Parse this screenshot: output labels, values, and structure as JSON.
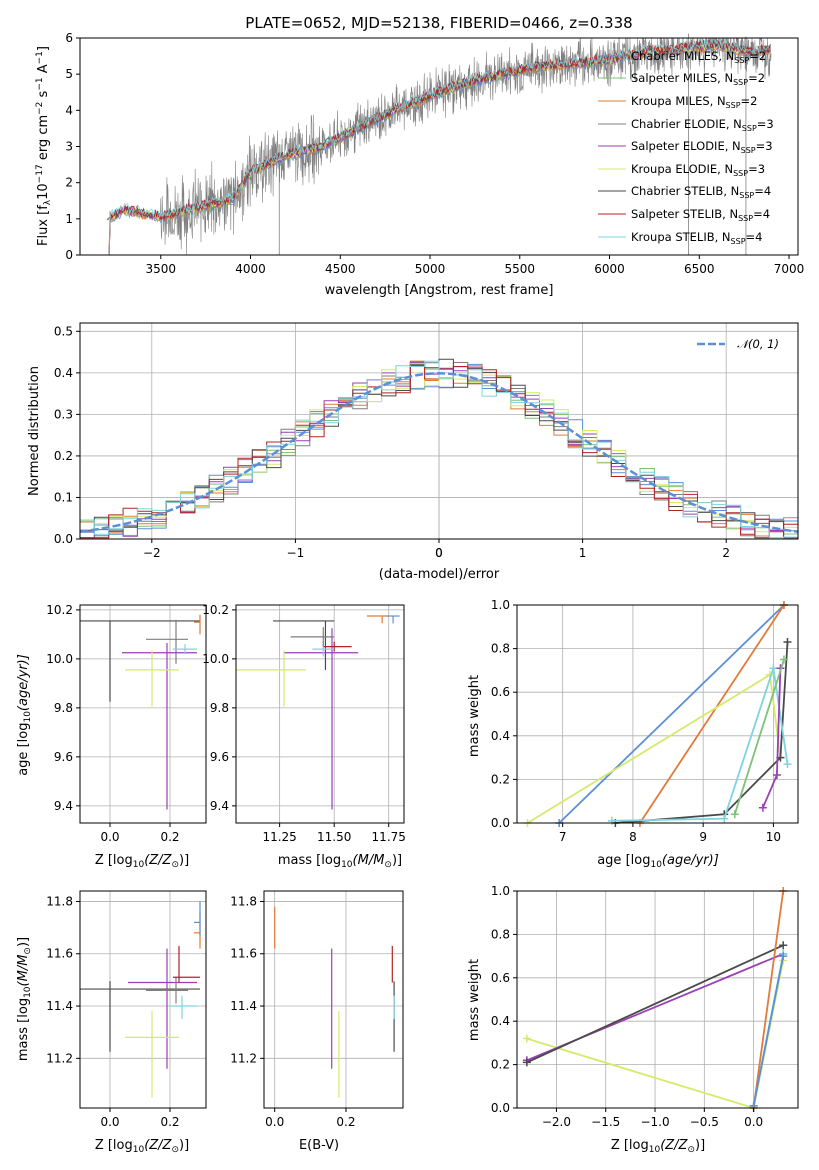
{
  "figure": {
    "title": "PLATE=0652, MJD=52138, FIBERID=0466, z=0.338"
  },
  "series_colors": {
    "Chabrier MILES": "#5b8fd6",
    "Salpeter MILES": "#7fc07a",
    "Kroupa MILES": "#e07b3a",
    "Chabrier ELODIE": "#7f7f7f",
    "Salpeter ELODIE": "#9a3fb6",
    "Kroupa ELODIE": "#d4ea6b",
    "Chabrier STELIB": "#4a4a4a",
    "Salpeter STELIB": "#b22424",
    "Kroupa STELIB": "#7ed3e0"
  },
  "legend_labels": {
    "l1": "Chabrier MILES, N",
    "l2": "Salpeter MILES, N",
    "l3": "Kroupa MILES, N",
    "l4": "Chabrier ELODIE, N",
    "l5": "Salpeter ELODIE, N",
    "l6": "Kroupa ELODIE, N",
    "l7": "Chabrier STELIB, N",
    "l8": "Salpeter STELIB, N",
    "l9": "Kroupa STELIB, N",
    "sub": "SSP",
    "n2": "=2",
    "n3": "=3",
    "n4": "=4",
    "normal": "𝒩(0, 1)"
  },
  "axis_labels": {
    "spec_x": "wavelength [Angstrom, rest frame]",
    "spec_y_pre": "Flux [f",
    "spec_y_lam": "λ",
    "spec_y_exp": "−17",
    "spec_y_mid": " erg cm",
    "spec_y_m2": "−2",
    "spec_y_s": " s",
    "spec_y_m1a": "−1",
    "spec_y_A": " A",
    "spec_y_m1b": "−1",
    "spec_y_end": "]",
    "hist_x": "(data-model)/error",
    "hist_y": "Normed distribution",
    "age_y_pre": "age  [log",
    "age_y_sub": "10",
    "age_y_post": "(age/yr)]",
    "z_x_pre": "Z [log",
    "z_x_sub": "10",
    "z_x_post": "(Z/Z",
    "z_x_sun": "⊙",
    "z_x_end": ")]",
    "mass_x_pre": "mass [log",
    "mass_x_sub": "10",
    "mass_x_post": "(M/M",
    "mass_x_sun": "⊙",
    "mass_x_end": ")]",
    "mw_y": "mass weight",
    "age_x_pre": "age  [log",
    "age_x_sub": "10",
    "age_x_post": "(age/yr)]",
    "ebv_x": "E(B-V)"
  },
  "chart_data": [
    {
      "type": "line",
      "panel": "spectrum",
      "title": "PLATE=0652, MJD=52138, FIBERID=0466, z=0.338",
      "xlabel": "wavelength [Angstrom, rest frame]",
      "ylabel": "Flux [fλ 10^-17 erg cm^-2 s^-1 A^-1]",
      "xlim": [
        3050,
        7050
      ],
      "ylim": [
        0,
        6
      ],
      "xticks": [
        3500,
        4000,
        4500,
        5000,
        5500,
        6000,
        6500,
        7000
      ],
      "yticks": [
        0,
        1,
        2,
        3,
        4,
        5,
        6
      ],
      "legend": "upper right",
      "data_range": [
        3200,
        6900
      ],
      "model_anchor_points": {
        "x": [
          3200,
          3300,
          3500,
          3700,
          3900,
          4000,
          4200,
          4400,
          4600,
          4800,
          5000,
          5200,
          5400,
          5600,
          5800,
          6000,
          6200,
          6400,
          6600,
          6800,
          6900
        ],
        "y": [
          1.0,
          1.25,
          1.05,
          1.3,
          1.55,
          2.3,
          2.75,
          3.0,
          3.5,
          4.0,
          4.4,
          4.75,
          5.0,
          5.2,
          5.3,
          5.4,
          5.6,
          5.7,
          5.8,
          5.6,
          5.7
        ]
      },
      "series": [
        {
          "name": "Chabrier MILES, N_SSP=2",
          "color": "#5b8fd6"
        },
        {
          "name": "Salpeter MILES, N_SSP=2",
          "color": "#7fc07a"
        },
        {
          "name": "Kroupa MILES, N_SSP=2",
          "color": "#e07b3a"
        },
        {
          "name": "Chabrier ELODIE, N_SSP=3",
          "color": "#7f7f7f"
        },
        {
          "name": "Salpeter ELODIE, N_SSP=3",
          "color": "#9a3fb6"
        },
        {
          "name": "Kroupa ELODIE, N_SSP=3",
          "color": "#d4ea6b"
        },
        {
          "name": "Chabrier STELIB, N_SSP=4",
          "color": "#4a4a4a"
        },
        {
          "name": "Salpeter STELIB, N_SSP=4",
          "color": "#b22424"
        },
        {
          "name": "Kroupa STELIB, N_SSP=4",
          "color": "#7ed3e0"
        }
      ]
    },
    {
      "type": "area",
      "panel": "residual-histogram",
      "xlabel": "(data-model)/error",
      "ylabel": "Normed distribution",
      "xlim": [
        -2.5,
        2.5
      ],
      "ylim": [
        0,
        0.52
      ],
      "xticks": [
        -2,
        -1,
        0,
        1,
        2
      ],
      "yticks": [
        0.0,
        0.1,
        0.2,
        0.3,
        0.4,
        0.5
      ],
      "grid": true,
      "legend": "upper right",
      "bin_width": 0.1,
      "reference": {
        "name": "𝒩(0, 1)",
        "mean": 0,
        "sigma": 1,
        "color": "#5b8fd6",
        "style": "dashed"
      }
    },
    {
      "type": "scatter",
      "panel": "age-vs-Z",
      "xlabel": "Z [log10(Z/Z⊙)]",
      "ylabel": "age [log10(age/yr)]",
      "xlim": [
        -0.1,
        0.32
      ],
      "ylim": [
        9.33,
        10.22
      ],
      "xticks": [
        0.0,
        0.2
      ],
      "yticks": [
        9.4,
        9.6,
        9.8,
        10.0,
        10.2
      ],
      "grid": true,
      "points": [
        {
          "series": "Chabrier STELIB",
          "x": 0.0,
          "y": 10.155,
          "x_err": [
            0.1,
            0.3
          ],
          "y_err": [
            0.33,
            0.0
          ]
        },
        {
          "series": "Chabrier ELODIE",
          "x": 0.22,
          "y": 10.08,
          "x_err": [
            0.1,
            0.04
          ],
          "y_err": [
            0.1,
            0.08
          ]
        },
        {
          "series": "Salpeter ELODIE",
          "x": 0.19,
          "y": 10.025,
          "x_err": [
            0.15,
            0.1
          ],
          "y_err": [
            0.64,
            0.04
          ]
        },
        {
          "series": "Kroupa ELODIE",
          "x": 0.14,
          "y": 9.955,
          "x_err": [
            0.09,
            0.09
          ],
          "y_err": [
            0.15,
            0.08
          ]
        },
        {
          "series": "Kroupa STELIB",
          "x": 0.25,
          "y": 10.04,
          "x_err": [
            0.04,
            0.04
          ],
          "y_err": [
            0.02,
            0.02
          ]
        },
        {
          "series": "Kroupa MILES",
          "x": 0.3,
          "y": 10.15,
          "x_err": [
            0.02,
            0.0
          ],
          "y_err": [
            0.05,
            0.03
          ]
        }
      ]
    },
    {
      "type": "scatter",
      "panel": "age-vs-mass",
      "xlabel": "mass [log10(M/M⊙)]",
      "ylabel": "",
      "xlim": [
        11.05,
        11.82
      ],
      "ylim": [
        9.33,
        10.22
      ],
      "xticks": [
        11.25,
        11.5,
        11.75
      ],
      "xtick_labels": [
        "11.25",
        "11.50",
        "11.75"
      ],
      "yticks": [
        9.4,
        9.6,
        9.8,
        10.0,
        10.2
      ],
      "grid": true,
      "points": [
        {
          "series": "Chabrier STELIB",
          "x": 11.46,
          "y": 10.155,
          "x_err": [
            0.24,
            0.04
          ],
          "y_err": [
            0.2,
            0.0
          ]
        },
        {
          "series": "Salpeter ELODIE",
          "x": 11.49,
          "y": 10.025,
          "x_err": [
            0.22,
            0.12
          ],
          "y_err": [
            0.64,
            0.1
          ]
        },
        {
          "series": "Kroupa ELODIE",
          "x": 11.27,
          "y": 9.955,
          "x_err": [
            0.22,
            0.1
          ],
          "y_err": [
            0.15,
            0.08
          ]
        },
        {
          "series": "Salpeter STELIB",
          "x": 11.5,
          "y": 10.05,
          "x_err": [
            0.05,
            0.08
          ],
          "y_err": [
            0.02,
            0.02
          ]
        },
        {
          "series": "Kroupa STELIB",
          "x": 11.45,
          "y": 10.04,
          "x_err": [
            0.05,
            0.05
          ],
          "y_err": [
            0.03,
            0.03
          ]
        },
        {
          "series": "Chabrier ELODIE",
          "x": 11.45,
          "y": 10.09,
          "x_err": [
            0.15,
            0.05
          ],
          "y_err": [
            0.04,
            0.04
          ]
        },
        {
          "series": "Kroupa MILES",
          "x": 11.72,
          "y": 10.175,
          "x_err": [
            0.07,
            0.03
          ],
          "y_err": [
            0.03,
            0.0
          ]
        },
        {
          "series": "Chabrier MILES",
          "x": 11.77,
          "y": 10.175,
          "x_err": [
            0.03,
            0.03
          ],
          "y_err": [
            0.03,
            0.0
          ]
        }
      ]
    },
    {
      "type": "line",
      "panel": "mass-weight-vs-age",
      "xlabel": "age [log10(age/yr)]",
      "ylabel": "mass weight",
      "xlim": [
        6.35,
        10.35
      ],
      "ylim": [
        0,
        1
      ],
      "xticks": [
        7,
        8,
        9,
        10
      ],
      "yticks": [
        0.0,
        0.2,
        0.4,
        0.6,
        0.8,
        1.0
      ],
      "grid": true,
      "series": [
        {
          "name": "Chabrier MILES",
          "x": [
            6.95,
            10.15
          ],
          "y": [
            0.0,
            1.0
          ]
        },
        {
          "name": "Kroupa MILES",
          "x": [
            8.1,
            10.15
          ],
          "y": [
            0.0,
            1.0
          ]
        },
        {
          "name": "Kroupa ELODIE",
          "x": [
            6.5,
            9.95,
            10.1
          ],
          "y": [
            0.0,
            0.68,
            0.3
          ]
        },
        {
          "name": "Chabrier STELIB",
          "x": [
            7.75,
            9.3,
            10.1,
            10.2
          ],
          "y": [
            0.0,
            0.04,
            0.3,
            0.83
          ]
        },
        {
          "name": "Kroupa STELIB",
          "x": [
            7.7,
            9.3,
            10.0,
            10.2
          ],
          "y": [
            0.01,
            0.02,
            0.71,
            0.27
          ]
        },
        {
          "name": "Salpeter ELODIE",
          "x": [
            9.85,
            10.05,
            10.1
          ],
          "y": [
            0.07,
            0.22,
            0.71
          ]
        },
        {
          "name": "Salpeter MILES",
          "x": [
            9.45,
            10.15
          ],
          "y": [
            0.04,
            0.75
          ]
        }
      ]
    },
    {
      "type": "scatter",
      "panel": "mass-vs-Z",
      "xlabel": "Z [log10(Z/Z⊙)]",
      "ylabel": "mass [log10(M/M⊙)]",
      "xlim": [
        -0.1,
        0.32
      ],
      "ylim": [
        11.01,
        11.84
      ],
      "xticks": [
        0.0,
        0.2
      ],
      "yticks": [
        11.2,
        11.4,
        11.6,
        11.8
      ],
      "grid": true,
      "points": [
        {
          "series": "Chabrier STELIB",
          "x": 0.0,
          "y": 11.465,
          "x_err": [
            0.1,
            0.3
          ],
          "y_err": [
            0.24,
            0.03
          ]
        },
        {
          "series": "Salpeter ELODIE",
          "x": 0.19,
          "y": 11.49,
          "x_err": [
            0.13,
            0.1
          ],
          "y_err": [
            0.33,
            0.13
          ]
        },
        {
          "series": "Kroupa ELODIE",
          "x": 0.14,
          "y": 11.28,
          "x_err": [
            0.09,
            0.09
          ],
          "y_err": [
            0.23,
            0.1
          ]
        },
        {
          "series": "Chabrier ELODIE",
          "x": 0.22,
          "y": 11.46,
          "x_err": [
            0.1,
            0.04
          ],
          "y_err": [
            0.05,
            0.05
          ]
        },
        {
          "series": "Salpeter STELIB",
          "x": 0.23,
          "y": 11.51,
          "x_err": [
            0.02,
            0.07
          ],
          "y_err": [
            0.02,
            0.12
          ]
        },
        {
          "series": "Kroupa STELIB",
          "x": 0.24,
          "y": 11.4,
          "x_err": [
            0.04,
            0.05
          ],
          "y_err": [
            0.05,
            0.04
          ]
        },
        {
          "series": "Kroupa MILES",
          "x": 0.3,
          "y": 11.68,
          "x_err": [
            0.02,
            0.0
          ],
          "y_err": [
            0.06,
            0.08
          ]
        },
        {
          "series": "Chabrier MILES",
          "x": 0.3,
          "y": 11.72,
          "x_err": [
            0.02,
            0.0
          ],
          "y_err": [
            0.05,
            0.08
          ]
        }
      ]
    },
    {
      "type": "scatter",
      "panel": "mass-vs-EBV",
      "xlabel": "E(B-V)",
      "ylabel": "",
      "xlim": [
        -0.03,
        0.36
      ],
      "ylim": [
        11.01,
        11.84
      ],
      "xticks": [
        0.0,
        0.2
      ],
      "yticks": [
        11.2,
        11.4,
        11.6,
        11.8
      ],
      "grid": true,
      "points": [
        {
          "series": "Kroupa MILES",
          "x": 0.0,
          "y": 11.68,
          "x_err": [
            0.0,
            0.0
          ],
          "y_err": [
            0.06,
            0.1
          ]
        },
        {
          "series": "Salpeter ELODIE",
          "x": 0.16,
          "y": 11.49,
          "x_err": [
            0.0,
            0.0
          ],
          "y_err": [
            0.33,
            0.13
          ]
        },
        {
          "series": "Kroupa ELODIE",
          "x": 0.18,
          "y": 11.28,
          "x_err": [
            0.0,
            0.0
          ],
          "y_err": [
            0.23,
            0.1
          ]
        },
        {
          "series": "Salpeter STELIB",
          "x": 0.33,
          "y": 11.51,
          "x_err": [
            0.0,
            0.0
          ],
          "y_err": [
            0.02,
            0.12
          ]
        },
        {
          "series": "Chabrier STELIB",
          "x": 0.335,
          "y": 11.465,
          "x_err": [
            0.0,
            0.0
          ],
          "y_err": [
            0.24,
            0.03
          ]
        },
        {
          "series": "Kroupa STELIB",
          "x": 0.335,
          "y": 11.4,
          "x_err": [
            0.0,
            0.0
          ],
          "y_err": [
            0.05,
            0.04
          ]
        }
      ]
    },
    {
      "type": "line",
      "panel": "mass-weight-vs-Z",
      "xlabel": "Z [log10(Z/Z⊙)]",
      "ylabel": "mass weight",
      "xlim": [
        -2.4,
        0.45
      ],
      "ylim": [
        0,
        1
      ],
      "xticks": [
        -2.0,
        -1.5,
        -1.0,
        -0.5,
        0.0
      ],
      "yticks": [
        0.0,
        0.2,
        0.4,
        0.6,
        0.8,
        1.0
      ],
      "grid": true,
      "series": [
        {
          "name": "Kroupa ELODIE",
          "x": [
            -2.3,
            0.0,
            0.3
          ],
          "y": [
            0.32,
            0.0,
            0.68
          ]
        },
        {
          "name": "Salpeter ELODIE",
          "x": [
            -2.3,
            0.3
          ],
          "y": [
            0.22,
            0.71
          ]
        },
        {
          "name": "Chabrier STELIB",
          "x": [
            -2.3,
            0.3
          ],
          "y": [
            0.21,
            0.75
          ]
        },
        {
          "name": "Kroupa STELIB",
          "x": [
            0.0,
            0.3
          ],
          "y": [
            0.01,
            0.71
          ]
        },
        {
          "name": "Kroupa MILES",
          "x": [
            0.0,
            0.3
          ],
          "y": [
            0.0,
            1.0
          ]
        },
        {
          "name": "Chabrier MILES",
          "x": [
            0.0,
            0.3
          ],
          "y": [
            0.01,
            0.7
          ]
        }
      ]
    }
  ]
}
